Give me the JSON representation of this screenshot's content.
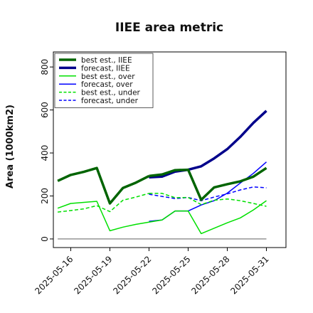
{
  "chart_data": {
    "type": "line",
    "title": "IIEE area metric",
    "xlabel": "",
    "ylabel": "Area (1000km2)",
    "ylim": [
      -40,
      870
    ],
    "xlim": [
      "2025-05-14T16:00",
      "2025-06-01T12:00"
    ],
    "yticks": [
      0,
      200,
      400,
      600,
      800
    ],
    "xticks": [
      "2025-05-16",
      "2025-05-19",
      "2025-05-22",
      "2025-05-25",
      "2025-05-28",
      "2025-05-31"
    ],
    "highlighted_xtick": "2025-05-22",
    "highlight_color": "#2a8a2a",
    "grid": false,
    "legend_position": "upper-left",
    "baseline": {
      "y": 0,
      "x_start": "2025-05-15",
      "x_end": "2025-05-31",
      "color": "#808080"
    },
    "series": [
      {
        "name": "best est., IIEE",
        "color": "#006400",
        "style": "solid",
        "width": 3.5,
        "x": [
          "2025-05-15",
          "2025-05-16",
          "2025-05-17",
          "2025-05-18",
          "2025-05-19",
          "2025-05-20",
          "2025-05-21",
          "2025-05-22"
        ],
        "y": [
          270,
          298,
          312,
          330,
          165,
          237,
          262,
          293
        ]
      },
      {
        "name": "forecast, IIEE",
        "color": "#00008b",
        "style": "solid",
        "width": 3.5,
        "x": [
          "2025-05-22",
          "2025-05-23",
          "2025-05-24",
          "2025-05-25",
          "2025-05-26",
          "2025-05-27",
          "2025-05-28",
          "2025-05-29",
          "2025-05-30",
          "2025-05-31"
        ],
        "y": [
          287,
          290,
          313,
          322,
          338,
          375,
          418,
          475,
          540,
          596
        ]
      },
      {
        "name": "best est., over",
        "color": "#00e000",
        "style": "solid",
        "width": 1.5,
        "x": [
          "2025-05-15",
          "2025-05-16",
          "2025-05-17",
          "2025-05-18",
          "2025-05-19",
          "2025-05-20",
          "2025-05-21",
          "2025-05-22"
        ],
        "y": [
          143,
          165,
          170,
          175,
          38,
          55,
          68,
          78
        ]
      },
      {
        "name": "forecast, over",
        "color": "#0000ff",
        "style": "solid",
        "width": 1.5,
        "x": [
          "2025-05-22",
          "2025-05-23",
          "2025-05-24",
          "2025-05-25",
          "2025-05-26",
          "2025-05-27",
          "2025-05-28",
          "2025-05-29",
          "2025-05-30",
          "2025-05-31"
        ],
        "y": [
          82,
          88,
          130,
          130,
          158,
          178,
          213,
          260,
          305,
          358
        ]
      },
      {
        "name": "best est., under",
        "color": "#00e000",
        "style": "dashed",
        "width": 1.5,
        "x": [
          "2025-05-15",
          "2025-05-16",
          "2025-05-17",
          "2025-05-18",
          "2025-05-19",
          "2025-05-20",
          "2025-05-21",
          "2025-05-22"
        ],
        "y": [
          125,
          132,
          140,
          155,
          127,
          180,
          195,
          212
        ]
      },
      {
        "name": "forecast, under",
        "color": "#0000ff",
        "style": "dashed",
        "width": 1.5,
        "x": [
          "2025-05-22",
          "2025-05-23",
          "2025-05-24",
          "2025-05-25",
          "2025-05-26",
          "2025-05-27",
          "2025-05-28",
          "2025-05-29",
          "2025-05-30",
          "2025-05-31"
        ],
        "y": [
          208,
          198,
          188,
          193,
          178,
          195,
          210,
          228,
          242,
          238
        ]
      },
      {
        "name": "",
        "color": "#006400",
        "style": "solid",
        "width": 3.5,
        "x": [
          "2025-05-22",
          "2025-05-23",
          "2025-05-24",
          "2025-05-25",
          "2025-05-26",
          "2025-05-27",
          "2025-05-28",
          "2025-05-29",
          "2025-05-30",
          "2025-05-31"
        ],
        "y": [
          293,
          300,
          320,
          322,
          182,
          240,
          255,
          268,
          290,
          330
        ]
      },
      {
        "name": "",
        "color": "#00e000",
        "style": "solid",
        "width": 1.5,
        "x": [
          "2025-05-22",
          "2025-05-23",
          "2025-05-24",
          "2025-05-25",
          "2025-05-26",
          "2025-05-27",
          "2025-05-28",
          "2025-05-29",
          "2025-05-30",
          "2025-05-31"
        ],
        "y": [
          78,
          88,
          130,
          130,
          25,
          50,
          75,
          98,
          135,
          178
        ]
      },
      {
        "name": "",
        "color": "#00e000",
        "style": "dashed",
        "width": 1.5,
        "x": [
          "2025-05-22",
          "2025-05-23",
          "2025-05-24",
          "2025-05-25",
          "2025-05-26",
          "2025-05-27",
          "2025-05-28",
          "2025-05-29",
          "2025-05-30",
          "2025-05-31"
        ],
        "y": [
          212,
          212,
          192,
          193,
          160,
          180,
          186,
          178,
          165,
          152
        ]
      }
    ]
  }
}
